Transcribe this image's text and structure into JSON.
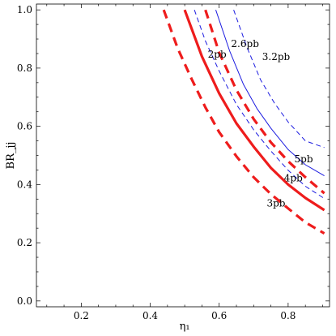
{
  "chart_data": {
    "type": "line",
    "title": "",
    "xlabel": "η₁",
    "ylabel": "BR_jj",
    "xlim": [
      0.07,
      0.92
    ],
    "ylim": [
      -0.02,
      1.02
    ],
    "x_ticks": [
      0.2,
      0.4,
      0.6,
      0.8
    ],
    "x_tick_labels": [
      "0.2",
      "0.4",
      "0.6",
      "0.8"
    ],
    "y_ticks": [
      0.0,
      0.2,
      0.4,
      0.6,
      0.8,
      1.0
    ],
    "y_tick_labels": [
      "0.0",
      "0.2",
      "0.4",
      "0.6",
      "0.8",
      "1.0"
    ],
    "grid": false,
    "series": [
      {
        "name": "3pb",
        "color": "#ee1c1c",
        "style": "thick-dashed",
        "x": [
          0.439,
          0.48,
          0.52,
          0.56,
          0.6,
          0.65,
          0.7,
          0.75,
          0.8,
          0.85,
          0.905
        ],
        "y": [
          1.0,
          0.867,
          0.763,
          0.665,
          0.58,
          0.497,
          0.425,
          0.367,
          0.318,
          0.27,
          0.232
        ]
      },
      {
        "name": "4pb",
        "color": "#ee1c1c",
        "style": "thick-solid",
        "x": [
          0.5,
          0.55,
          0.6,
          0.65,
          0.7,
          0.75,
          0.8,
          0.85,
          0.905
        ],
        "y": [
          1.0,
          0.84,
          0.713,
          0.61,
          0.53,
          0.457,
          0.4,
          0.354,
          0.312
        ]
      },
      {
        "name": "5pb",
        "color": "#ee1c1c",
        "style": "thick-dashed",
        "x": [
          0.56,
          0.6,
          0.65,
          0.7,
          0.75,
          0.8,
          0.85,
          0.905
        ],
        "y": [
          1.0,
          0.853,
          0.725,
          0.625,
          0.545,
          0.48,
          0.425,
          0.37
        ]
      },
      {
        "name": "2pb",
        "color": "#1c1ce0",
        "style": "thin-dashed",
        "x": [
          0.528,
          0.56,
          0.6,
          0.65,
          0.7,
          0.75,
          0.8,
          0.85,
          0.905
        ],
        "y": [
          1.0,
          0.893,
          0.79,
          0.675,
          0.588,
          0.515,
          0.449,
          0.394,
          0.352
        ]
      },
      {
        "name": "2.6pb",
        "color": "#1c1ce0",
        "style": "thin-solid",
        "x": [
          0.59,
          0.63,
          0.67,
          0.71,
          0.75,
          0.8,
          0.85,
          0.905
        ],
        "y": [
          1.0,
          0.86,
          0.745,
          0.66,
          0.593,
          0.52,
          0.468,
          0.43
        ]
      },
      {
        "name": "3.2pb",
        "color": "#1c1ce0",
        "style": "thin-dashed",
        "x": [
          0.642,
          0.68,
          0.72,
          0.76,
          0.8,
          0.85,
          0.905
        ],
        "y": [
          1.0,
          0.873,
          0.76,
          0.68,
          0.615,
          0.55,
          0.527
        ]
      }
    ],
    "annotations": [
      {
        "text": "2pb",
        "x": 0.594,
        "y": 0.847
      },
      {
        "text": "2.6pb",
        "x": 0.675,
        "y": 0.884
      },
      {
        "text": "3.2pb",
        "x": 0.765,
        "y": 0.839
      },
      {
        "text": "5pb",
        "x": 0.845,
        "y": 0.488
      },
      {
        "text": "4pb",
        "x": 0.815,
        "y": 0.422
      },
      {
        "text": "3pb",
        "x": 0.765,
        "y": 0.335
      }
    ]
  }
}
